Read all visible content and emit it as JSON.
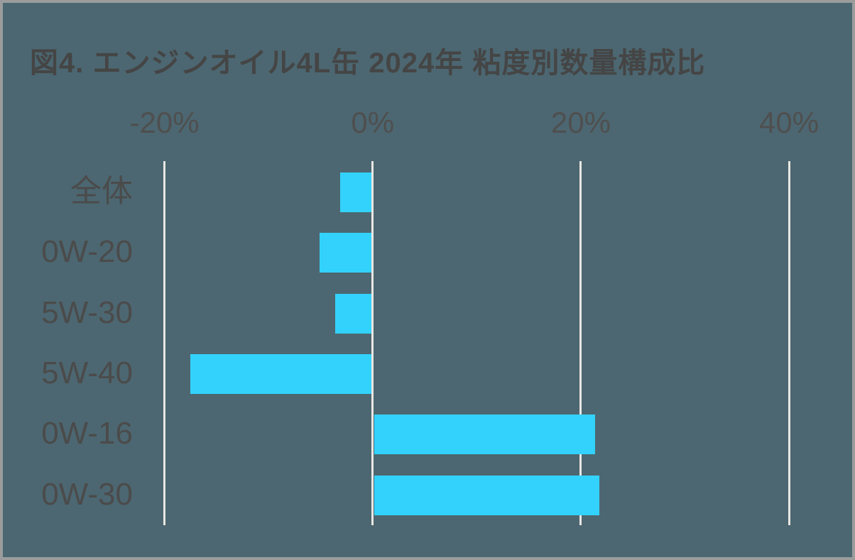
{
  "page": {
    "background_color": "#4c6771",
    "border_color": "#9c9c9c"
  },
  "chart_data": {
    "type": "bar",
    "orientation": "horizontal",
    "title": "図4. エンジンオイル4L缶 2024年 粘度別数量構成比",
    "categories": [
      "全体",
      "0W-20",
      "5W-30",
      "5W-40",
      "0W-16",
      "0W-30"
    ],
    "values": [
      -3.1,
      -5.1,
      -3.6,
      -17.5,
      21.4,
      21.8
    ],
    "unit": "%",
    "xlabel": "",
    "ylabel": "",
    "x_axis": {
      "position": "top",
      "range": [
        -20,
        40
      ],
      "tick_values": [
        -20,
        0,
        20,
        40
      ],
      "tick_labels": [
        "-20%",
        "0%",
        "20%",
        "40%"
      ]
    },
    "grid": true,
    "legend": false,
    "colors": {
      "bar": "#33d2fc",
      "gridline": "#e8e6e3",
      "title_text": "#454545",
      "tick_text": "#4f4f4f",
      "category_text": "#4b4b4b"
    }
  }
}
